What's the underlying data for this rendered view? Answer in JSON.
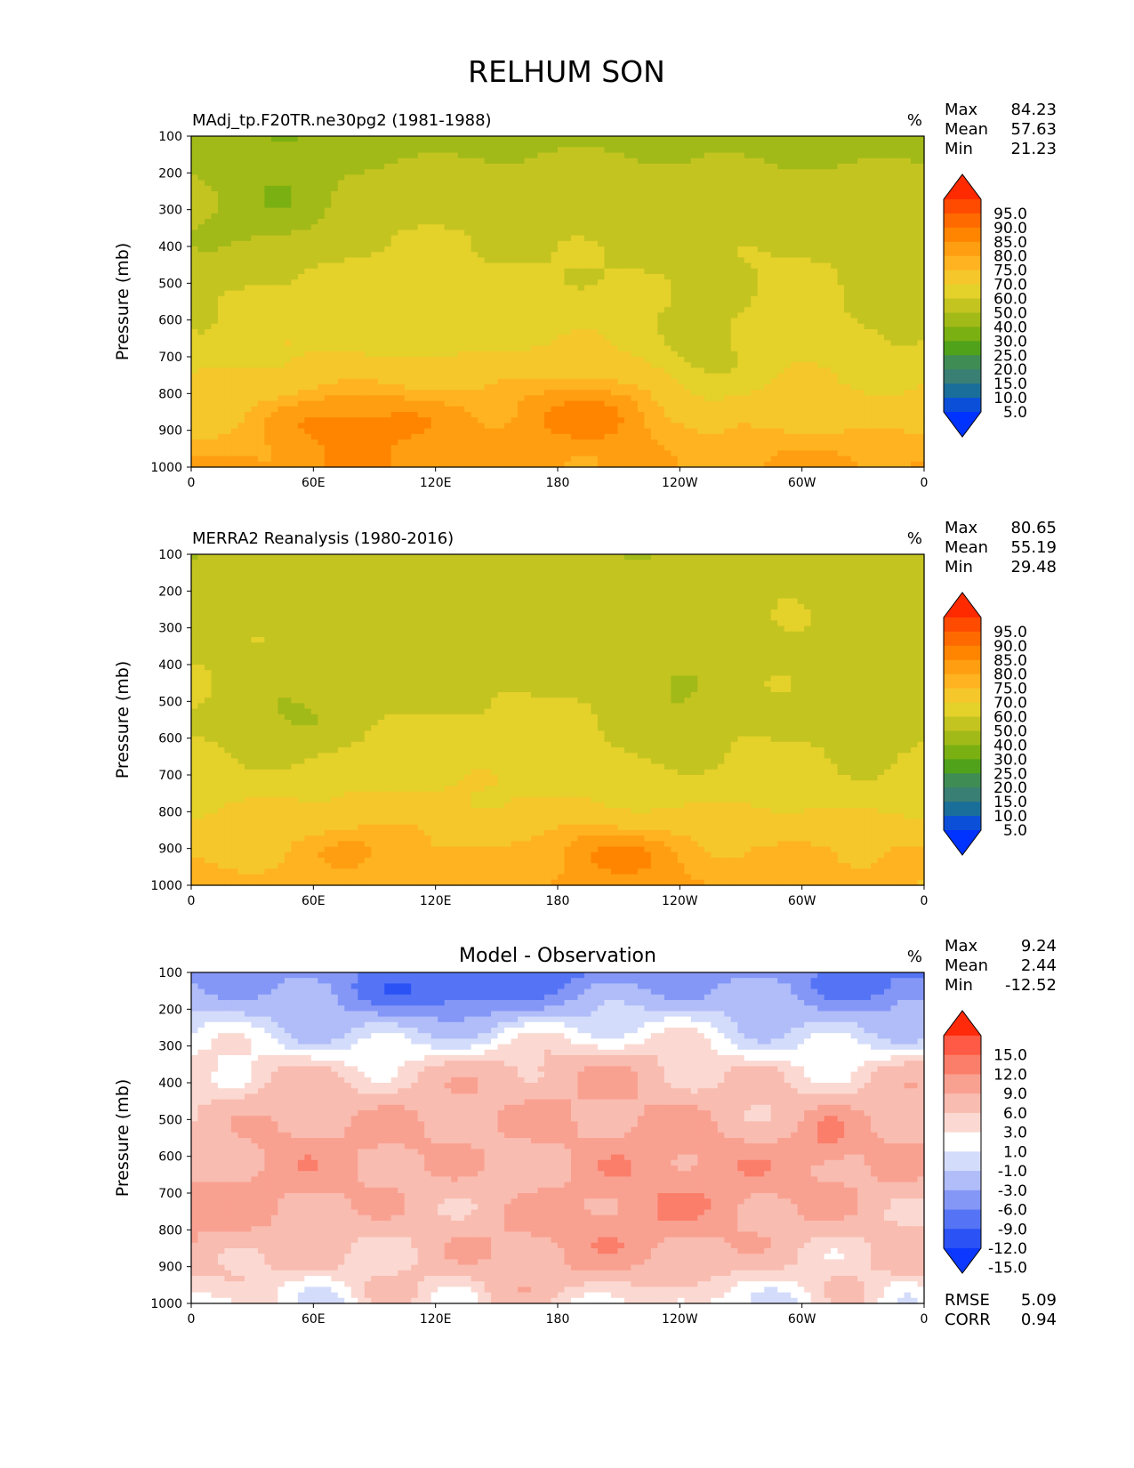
{
  "figure": {
    "title": "RELHUM SON"
  },
  "chart_data": [
    {
      "type": "heatmap",
      "title": "MAdj_tp.F20TR.ne30pg2 (1981-1988)",
      "units": "%",
      "xlabel": "",
      "ylabel": "Pressure (mb)",
      "x_ticks": [
        "0",
        "60E",
        "120E",
        "180",
        "120W",
        "60W",
        "0"
      ],
      "y_ticks": [
        "100",
        "200",
        "300",
        "400",
        "500",
        "600",
        "700",
        "800",
        "900",
        "1000"
      ],
      "ylim": [
        1000,
        100
      ],
      "xlim": [
        0,
        360
      ],
      "stats": [
        {
          "label": "Max",
          "value": "84.23"
        },
        {
          "label": "Mean",
          "value": "57.63"
        },
        {
          "label": "Min",
          "value": "21.23"
        }
      ],
      "colorbar": {
        "labels": [
          "95.0",
          "90.0",
          "85.0",
          "80.0",
          "75.0",
          "70.0",
          "60.0",
          "50.0",
          "40.0",
          "30.0",
          "25.0",
          "20.0",
          "15.0",
          "10.0",
          "5.0"
        ],
        "colors": [
          "#ff2a00",
          "#ff4b00",
          "#ff6a00",
          "#ff8500",
          "#ff9e10",
          "#ffb321",
          "#f5c72a",
          "#e4d12a",
          "#c4c420",
          "#a2ba18",
          "#7bb012",
          "#50a21a",
          "#3f8c55",
          "#3a7f74",
          "#1a6f9a",
          "#0b4fd8",
          "#0033ff"
        ]
      },
      "field_description": "Moist (70-85%) near surface 800-1000 mb, ~55-65% mid troposphere, drier (~40%) 100-200 mb"
    },
    {
      "type": "heatmap",
      "title": "MERRA2 Reanalysis (1980-2016)",
      "units": "%",
      "xlabel": "",
      "ylabel": "Pressure (mb)",
      "x_ticks": [
        "0",
        "60E",
        "120E",
        "180",
        "120W",
        "60W",
        "0"
      ],
      "y_ticks": [
        "100",
        "200",
        "300",
        "400",
        "500",
        "600",
        "700",
        "800",
        "900",
        "1000"
      ],
      "ylim": [
        1000,
        100
      ],
      "xlim": [
        0,
        360
      ],
      "stats": [
        {
          "label": "Max",
          "value": "80.65"
        },
        {
          "label": "Mean",
          "value": "55.19"
        },
        {
          "label": "Min",
          "value": "29.48"
        }
      ],
      "colorbar": {
        "labels": [
          "95.0",
          "90.0",
          "85.0",
          "80.0",
          "75.0",
          "70.0",
          "60.0",
          "50.0",
          "40.0",
          "30.0",
          "25.0",
          "20.0",
          "15.0",
          "10.0",
          "5.0"
        ],
        "colors": [
          "#ff2a00",
          "#ff4b00",
          "#ff6a00",
          "#ff8500",
          "#ff9e10",
          "#ffb321",
          "#f5c72a",
          "#e4d12a",
          "#c4c420",
          "#a2ba18",
          "#7bb012",
          "#50a21a",
          "#3f8c55",
          "#3a7f74",
          "#1a6f9a",
          "#0b4fd8",
          "#0033ff"
        ]
      },
      "field_description": "Similar structure to model, slightly drier; moist band below 850 mb"
    },
    {
      "type": "heatmap",
      "title": "Model - Observation",
      "units": "%",
      "xlabel": "",
      "ylabel": "Pressure (mb)",
      "x_ticks": [
        "0",
        "60E",
        "120E",
        "180",
        "120W",
        "60W",
        "0"
      ],
      "y_ticks": [
        "100",
        "200",
        "300",
        "400",
        "500",
        "600",
        "700",
        "800",
        "900",
        "1000"
      ],
      "ylim": [
        1000,
        100
      ],
      "xlim": [
        0,
        360
      ],
      "stats": [
        {
          "label": "Max",
          "value": "9.24"
        },
        {
          "label": "Mean",
          "value": "2.44"
        },
        {
          "label": "Min",
          "value": "-12.52"
        }
      ],
      "bottom_stats": [
        {
          "label": "RMSE",
          "value": "5.09"
        },
        {
          "label": "CORR",
          "value": "0.94"
        }
      ],
      "colorbar": {
        "labels": [
          "15.0",
          "12.0",
          "9.0",
          "6.0",
          "3.0",
          "1.0",
          "-1.0",
          "-3.0",
          "-6.0",
          "-9.0",
          "-12.0",
          "-15.0"
        ],
        "colors": [
          "#ff2a0a",
          "#ff5a45",
          "#fb7e6a",
          "#f9a191",
          "#f9bcb0",
          "#fbd9d2",
          "#ffffff",
          "#d4dcfb",
          "#b0bdf9",
          "#8497f7",
          "#5574f5",
          "#2a52f5",
          "#0c38ff"
        ]
      },
      "field_description": "Negative (-3 to -12) near 100-250 mb, positive (+3 to +9) through most of 300-1000 mb"
    }
  ]
}
